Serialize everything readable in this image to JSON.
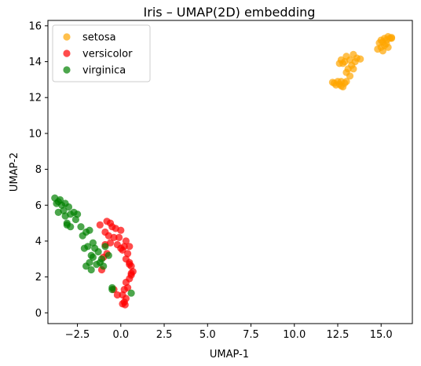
{
  "chart_data": {
    "type": "scatter",
    "title": "Iris – UMAP(2D) embedding",
    "xlabel": "UMAP-1",
    "ylabel": "UMAP-2",
    "xlim": [
      -4.2,
      16.8
    ],
    "ylim": [
      -0.6,
      16.3
    ],
    "x_ticks": [
      -2.5,
      0.0,
      2.5,
      5.0,
      7.5,
      10.0,
      12.5,
      15.0
    ],
    "x_tick_labels": [
      "−2.5",
      "0.0",
      "2.5",
      "5.0",
      "7.5",
      "10.0",
      "12.5",
      "15.0"
    ],
    "y_ticks": [
      0,
      2,
      4,
      6,
      8,
      10,
      12,
      14,
      16
    ],
    "y_tick_labels": [
      "0",
      "2",
      "4",
      "6",
      "8",
      "10",
      "12",
      "14",
      "16"
    ],
    "grid": false,
    "legend": {
      "position": "top-left"
    },
    "series": [
      {
        "name": "setosa",
        "color": "#FFA500",
        "points": [
          [
            12.3,
            12.8
          ],
          [
            12.5,
            12.9
          ],
          [
            12.4,
            12.7
          ],
          [
            12.7,
            12.9
          ],
          [
            12.6,
            12.75
          ],
          [
            12.9,
            12.8
          ],
          [
            12.8,
            12.6
          ],
          [
            13.0,
            12.9
          ],
          [
            12.2,
            12.85
          ],
          [
            12.7,
            12.65
          ],
          [
            12.6,
            13.9
          ],
          [
            12.7,
            14.1
          ],
          [
            12.9,
            14.0
          ],
          [
            13.0,
            14.3
          ],
          [
            13.2,
            14.1
          ],
          [
            13.4,
            14.4
          ],
          [
            13.6,
            14.2
          ],
          [
            13.8,
            14.15
          ],
          [
            13.3,
            13.8
          ],
          [
            13.1,
            13.6
          ],
          [
            13.0,
            13.4
          ],
          [
            13.2,
            13.2
          ],
          [
            12.8,
            13.9
          ],
          [
            13.5,
            14.0
          ],
          [
            13.4,
            13.6
          ],
          [
            14.8,
            14.7
          ],
          [
            15.0,
            14.8
          ],
          [
            15.1,
            15.1
          ],
          [
            15.3,
            15.0
          ],
          [
            15.2,
            15.3
          ],
          [
            15.4,
            15.4
          ],
          [
            15.6,
            15.35
          ],
          [
            15.0,
            15.2
          ],
          [
            15.2,
            14.9
          ],
          [
            15.4,
            14.8
          ],
          [
            15.5,
            15.3
          ],
          [
            15.3,
            15.2
          ],
          [
            14.9,
            15.05
          ],
          [
            15.1,
            14.6
          ],
          [
            15.6,
            15.3
          ]
        ]
      },
      {
        "name": "versicolor",
        "color": "#FF0000",
        "points": [
          [
            -1.2,
            4.9
          ],
          [
            -0.8,
            5.1
          ],
          [
            -0.6,
            5.0
          ],
          [
            -0.5,
            4.8
          ],
          [
            -0.3,
            4.7
          ],
          [
            -0.9,
            4.5
          ],
          [
            -0.7,
            4.3
          ],
          [
            -0.4,
            4.2
          ],
          [
            0.0,
            4.6
          ],
          [
            -0.1,
            4.2
          ],
          [
            0.3,
            4.0
          ],
          [
            0.2,
            3.7
          ],
          [
            0.1,
            3.5
          ],
          [
            0.4,
            3.3
          ],
          [
            0.3,
            3.0
          ],
          [
            0.5,
            2.8
          ],
          [
            0.6,
            2.6
          ],
          [
            0.7,
            2.3
          ],
          [
            0.6,
            2.1
          ],
          [
            0.5,
            1.9
          ],
          [
            0.3,
            1.7
          ],
          [
            0.4,
            1.4
          ],
          [
            0.2,
            1.3
          ],
          [
            0.1,
            1.0
          ],
          [
            0.3,
            0.8
          ],
          [
            0.2,
            0.6
          ],
          [
            0.25,
            0.45
          ],
          [
            0.1,
            0.5
          ],
          [
            -0.2,
            1.0
          ],
          [
            -0.4,
            1.3
          ],
          [
            -0.9,
            3.8
          ],
          [
            -1.0,
            3.1
          ],
          [
            -1.1,
            2.4
          ],
          [
            -0.8,
            3.3
          ],
          [
            -0.6,
            3.9
          ],
          [
            0.0,
            3.6
          ],
          [
            0.5,
            3.7
          ],
          [
            -0.2,
            3.8
          ],
          [
            0.6,
            2.2
          ],
          [
            0.5,
            2.7
          ]
        ]
      },
      {
        "name": "virginica",
        "color": "#008000",
        "points": [
          [
            -3.8,
            6.4
          ],
          [
            -3.6,
            6.2
          ],
          [
            -3.4,
            6.0
          ],
          [
            -3.5,
            6.3
          ],
          [
            -3.2,
            6.1
          ],
          [
            -3.0,
            5.9
          ],
          [
            -3.3,
            5.7
          ],
          [
            -3.6,
            5.6
          ],
          [
            -3.2,
            5.4
          ],
          [
            -2.9,
            5.5
          ],
          [
            -2.7,
            5.6
          ],
          [
            -2.5,
            5.5
          ],
          [
            -2.6,
            5.2
          ],
          [
            -3.1,
            5.0
          ],
          [
            -2.9,
            4.8
          ],
          [
            -3.1,
            4.9
          ],
          [
            -2.3,
            4.8
          ],
          [
            -2.0,
            4.5
          ],
          [
            -1.8,
            4.6
          ],
          [
            -2.2,
            4.3
          ],
          [
            -1.9,
            3.7
          ],
          [
            -1.6,
            3.9
          ],
          [
            -1.5,
            3.6
          ],
          [
            -1.7,
            3.2
          ],
          [
            -1.3,
            3.4
          ],
          [
            -1.1,
            3.0
          ],
          [
            -1.4,
            2.7
          ],
          [
            -1.8,
            2.8
          ],
          [
            -2.0,
            2.6
          ],
          [
            -1.7,
            2.4
          ],
          [
            -0.9,
            3.7
          ],
          [
            -0.7,
            3.2
          ],
          [
            -1.0,
            2.6
          ],
          [
            -0.5,
            1.4
          ],
          [
            -0.5,
            1.3
          ],
          [
            -3.7,
            6.1
          ],
          [
            -2.1,
            3.6
          ],
          [
            -1.6,
            3.1
          ],
          [
            -1.2,
            2.8
          ],
          [
            0.6,
            1.1
          ]
        ]
      }
    ]
  }
}
